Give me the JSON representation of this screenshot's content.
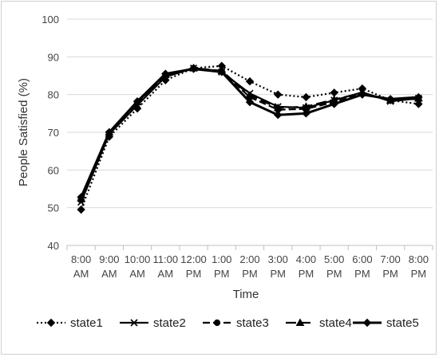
{
  "chart_data": {
    "type": "line",
    "title": "",
    "xlabel": "Time",
    "ylabel": "People Satisfied (%)",
    "ylim": [
      40,
      100
    ],
    "yticks": [
      40,
      50,
      60,
      70,
      80,
      90,
      100
    ],
    "grid": "horizontal",
    "legend_position": "bottom",
    "categories": [
      [
        "8:00",
        "AM"
      ],
      [
        "9:00",
        "AM"
      ],
      [
        "10:00",
        "AM"
      ],
      [
        "11:00",
        "AM"
      ],
      [
        "12:00",
        "PM"
      ],
      [
        "1:00",
        "PM"
      ],
      [
        "2:00",
        "PM"
      ],
      [
        "3:00",
        "PM"
      ],
      [
        "4:00",
        "PM"
      ],
      [
        "5:00",
        "PM"
      ],
      [
        "6:00",
        "PM"
      ],
      [
        "7:00",
        "PM"
      ],
      [
        "8:00",
        "PM"
      ]
    ],
    "series": [
      {
        "name": "state1",
        "marker": "diamond",
        "dash": "2,3",
        "width": 2.2,
        "values": [
          49.5,
          68.8,
          76.3,
          83.8,
          87.0,
          87.6,
          83.5,
          80.0,
          79.3,
          80.5,
          81.6,
          78.5,
          77.5
        ]
      },
      {
        "name": "state2",
        "marker": "x",
        "dash": "none",
        "width": 2.2,
        "values": [
          51.5,
          69.5,
          77.2,
          84.7,
          87.0,
          86.0,
          80.3,
          76.8,
          76.5,
          78.5,
          80.6,
          78.2,
          79.0
        ]
      },
      {
        "name": "state3",
        "marker": "circle",
        "dash": "9,4",
        "width": 2.2,
        "values": [
          52.0,
          69.8,
          77.8,
          85.0,
          87.0,
          86.2,
          79.3,
          76.0,
          76.2,
          78.0,
          80.2,
          78.7,
          78.8
        ]
      },
      {
        "name": "state4",
        "marker": "triangle",
        "dash": "13,5",
        "width": 2.2,
        "values": [
          52.5,
          70.0,
          78.0,
          85.2,
          87.0,
          86.3,
          79.8,
          76.5,
          76.8,
          78.7,
          80.4,
          78.5,
          79.0
        ]
      },
      {
        "name": "state5",
        "marker": "diamond",
        "dash": "none",
        "width": 3,
        "values": [
          52.8,
          70.0,
          78.2,
          85.5,
          86.8,
          86.0,
          78.0,
          74.6,
          75.0,
          77.5,
          80.0,
          78.8,
          79.3
        ]
      }
    ]
  }
}
